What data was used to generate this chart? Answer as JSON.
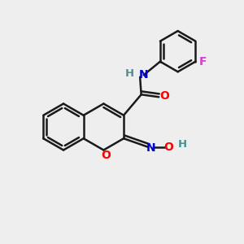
{
  "background_color": "#eeeeee",
  "bond_color": "#1a1a1a",
  "atom_colors": {
    "O": "#ff0000",
    "N": "#0000cc",
    "F": "#cc44cc",
    "H_teal": "#4a9090",
    "C": "#1a1a1a"
  },
  "bond_lw": 1.8,
  "figsize": [
    3.0,
    3.0
  ],
  "dpi": 100
}
